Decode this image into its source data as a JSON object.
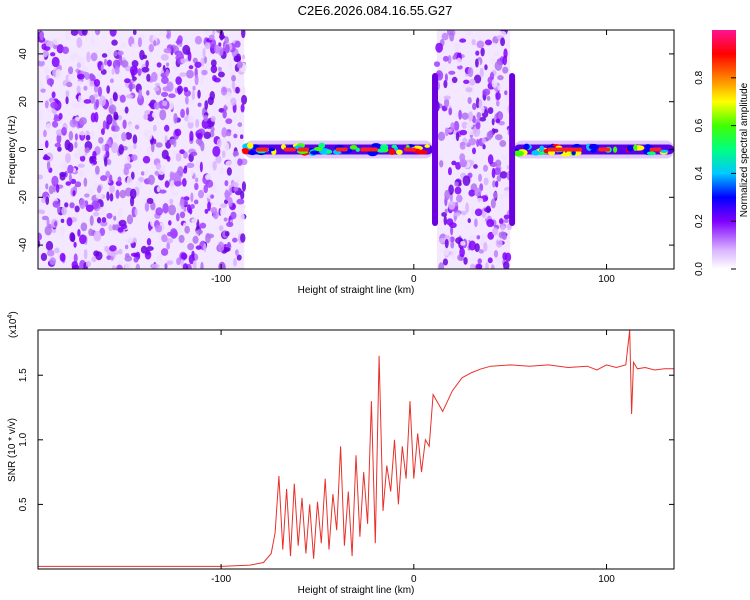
{
  "title": "C2E6.2026.084.16.55.G27",
  "charts": [
    {
      "type": "heatmap",
      "xlabel": "Height of straight line (km)",
      "ylabel": "Frequency (Hz)",
      "xlim": [
        -195,
        135
      ],
      "ylim": [
        -50,
        50
      ],
      "xticks": [
        -100,
        0,
        100
      ],
      "xtick_labels": [
        "-100",
        "0",
        "100"
      ],
      "yticks": [
        -40,
        -20,
        0,
        20,
        40
      ],
      "ytick_labels": [
        "-40",
        "-20",
        "0",
        "20",
        "40"
      ],
      "colorbar": {
        "label": "Normalized spectral amplitude",
        "range": [
          0,
          1
        ],
        "ticks": [
          0,
          0.2,
          0.4,
          0.6,
          0.8
        ],
        "tick_labels": [
          "0.0",
          "0.2",
          "0.4",
          "0.6",
          "0.8"
        ]
      },
      "regions": [
        {
          "name": "noise",
          "x": [
            -195,
            -88
          ]
        },
        {
          "name": "signal-track",
          "x": [
            -88,
            10
          ]
        },
        {
          "name": "noise",
          "x": [
            12,
            50
          ]
        },
        {
          "name": "signal-track",
          "x": [
            52,
            135
          ]
        }
      ]
    },
    {
      "type": "line",
      "xlabel": "Height of straight line (km)",
      "ylabel": "SNR (10 * v/v)",
      "y_multiplier": "(x10",
      "y_multiplier_exp": "4",
      "y_multiplier_close": ")",
      "xlim": [
        -195,
        135
      ],
      "ylim": [
        0,
        1.85
      ],
      "xticks": [
        -100,
        0,
        100
      ],
      "xtick_labels": [
        "-100",
        "0",
        "100"
      ],
      "yticks": [
        0.5,
        1.0,
        1.5
      ],
      "ytick_labels": [
        "0.5",
        "1.0",
        "1.5"
      ],
      "color": "#e8312c",
      "series": [
        {
          "name": "SNR",
          "x": [
            -195,
            -150,
            -100,
            -85,
            -78,
            -74,
            -72,
            -70,
            -68,
            -66,
            -64,
            -62,
            -60,
            -58,
            -56,
            -54,
            -52,
            -50,
            -48,
            -46,
            -44,
            -42,
            -40,
            -38,
            -36,
            -34,
            -32,
            -30,
            -28,
            -26,
            -24,
            -22,
            -20,
            -18,
            -16,
            -14,
            -12,
            -10,
            -8,
            -6,
            -4,
            -2,
            0,
            2,
            4,
            6,
            8,
            10,
            15,
            20,
            25,
            30,
            35,
            40,
            50,
            60,
            70,
            80,
            90,
            95,
            100,
            105,
            110,
            112,
            113,
            114,
            116,
            120,
            125,
            130,
            135
          ],
          "y": [
            0.02,
            0.02,
            0.02,
            0.03,
            0.05,
            0.12,
            0.28,
            0.72,
            0.15,
            0.62,
            0.1,
            0.66,
            0.18,
            0.55,
            0.12,
            0.5,
            0.08,
            0.52,
            0.2,
            0.7,
            0.15,
            0.58,
            0.3,
            0.95,
            0.18,
            0.6,
            0.1,
            0.88,
            0.25,
            0.75,
            0.35,
            1.3,
            0.2,
            1.65,
            0.45,
            0.8,
            0.6,
            1.0,
            0.5,
            0.95,
            0.7,
            1.3,
            0.7,
            1.05,
            0.75,
            1.0,
            0.95,
            1.35,
            1.22,
            1.38,
            1.48,
            1.52,
            1.55,
            1.57,
            1.58,
            1.57,
            1.58,
            1.56,
            1.57,
            1.54,
            1.58,
            1.56,
            1.58,
            1.85,
            1.2,
            1.6,
            1.55,
            1.56,
            1.54,
            1.55,
            1.55
          ]
        }
      ]
    }
  ]
}
